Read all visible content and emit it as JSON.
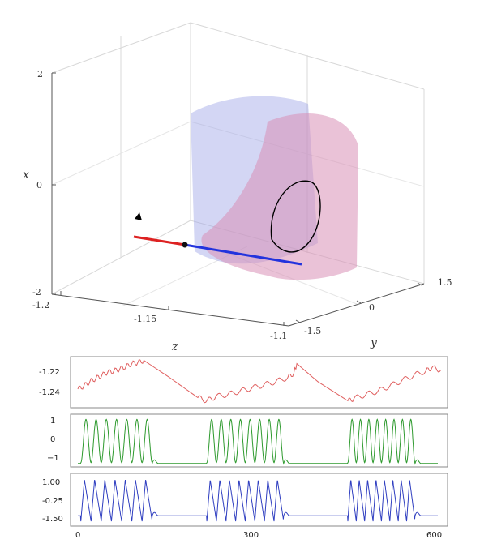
{
  "chart_data": [
    {
      "type": "line3d",
      "axes": {
        "x": {
          "label": "x",
          "ticks": [
            "2",
            "0",
            "-2"
          ],
          "range": [
            -2,
            2
          ]
        },
        "y": {
          "label": "y",
          "ticks": [
            "-1.5",
            "0",
            "1.5"
          ],
          "range": [
            -1.5,
            1.5
          ]
        },
        "z": {
          "label": "z",
          "ticks": [
            "-1.2",
            "-1.15",
            "-1.1"
          ],
          "range": [
            -1.2,
            -1.1
          ]
        }
      },
      "grid": true,
      "series": [
        {
          "color": "#000000",
          "style": "trajectory spiraling around a slow manifold",
          "loops": 14
        },
        {
          "color": "#dd2222",
          "style": "segment of critical manifold"
        },
        {
          "color": "#2233dd",
          "style": "segment of critical manifold"
        }
      ],
      "surfaces": [
        {
          "color": "#9ea3e6"
        },
        {
          "color": "#d98fb6"
        }
      ]
    },
    {
      "type": "line",
      "x_range": [
        0,
        600
      ],
      "ylim": [
        -1.255,
        -1.21
      ],
      "y_ticks": [
        "-1.22",
        "-1.24"
      ],
      "color": "#e06060",
      "data": [
        [
          0,
          -1.239
        ],
        [
          10,
          -1.236
        ],
        [
          20,
          -1.232
        ],
        [
          30,
          -1.229
        ],
        [
          40,
          -1.226
        ],
        [
          50,
          -1.223
        ],
        [
          60,
          -1.222
        ],
        [
          70,
          -1.22
        ],
        [
          80,
          -1.218
        ],
        [
          90,
          -1.215
        ],
        [
          100,
          -1.214
        ],
        [
          110,
          -1.212
        ],
        [
          150,
          -1.227
        ],
        [
          200,
          -1.247
        ],
        [
          215,
          -1.25
        ],
        [
          230,
          -1.246
        ],
        [
          250,
          -1.244
        ],
        [
          270,
          -1.241
        ],
        [
          290,
          -1.238
        ],
        [
          310,
          -1.235
        ],
        [
          330,
          -1.232
        ],
        [
          350,
          -1.228
        ],
        [
          360,
          -1.224
        ],
        [
          365,
          -1.215
        ],
        [
          400,
          -1.232
        ],
        [
          450,
          -1.25
        ],
        [
          460,
          -1.248
        ],
        [
          480,
          -1.244
        ],
        [
          500,
          -1.241
        ],
        [
          520,
          -1.236
        ],
        [
          540,
          -1.231
        ],
        [
          560,
          -1.226
        ],
        [
          580,
          -1.222
        ],
        [
          590,
          -1.219
        ],
        [
          605,
          -1.221
        ]
      ]
    },
    {
      "type": "line",
      "x_range": [
        0,
        600
      ],
      "ylim": [
        -1.35,
        1.4
      ],
      "y_ticks": [
        "1",
        "0",
        "−1"
      ],
      "color": "#2e9a2e",
      "bursts": [
        {
          "start": 5,
          "spikes": 7,
          "period": 17
        },
        {
          "start": 215,
          "spikes": 8,
          "period": 16
        },
        {
          "start": 450,
          "spikes": 8,
          "period": 14
        }
      ],
      "rest_level": -1.25
    },
    {
      "type": "line",
      "x_range": [
        0,
        600
      ],
      "ylim": [
        -1.8,
        1.3
      ],
      "y_ticks": [
        "1.00",
        "-0.25",
        "-1.50"
      ],
      "color": "#2f3ec0",
      "bursts": [
        {
          "start": 5,
          "spikes": 7,
          "period": 17
        },
        {
          "start": 215,
          "spikes": 8,
          "period": 16
        },
        {
          "start": 450,
          "spikes": 8,
          "period": 14
        }
      ],
      "rest_level": -1.25,
      "x_ticks": [
        "0",
        "300",
        "600"
      ]
    }
  ]
}
